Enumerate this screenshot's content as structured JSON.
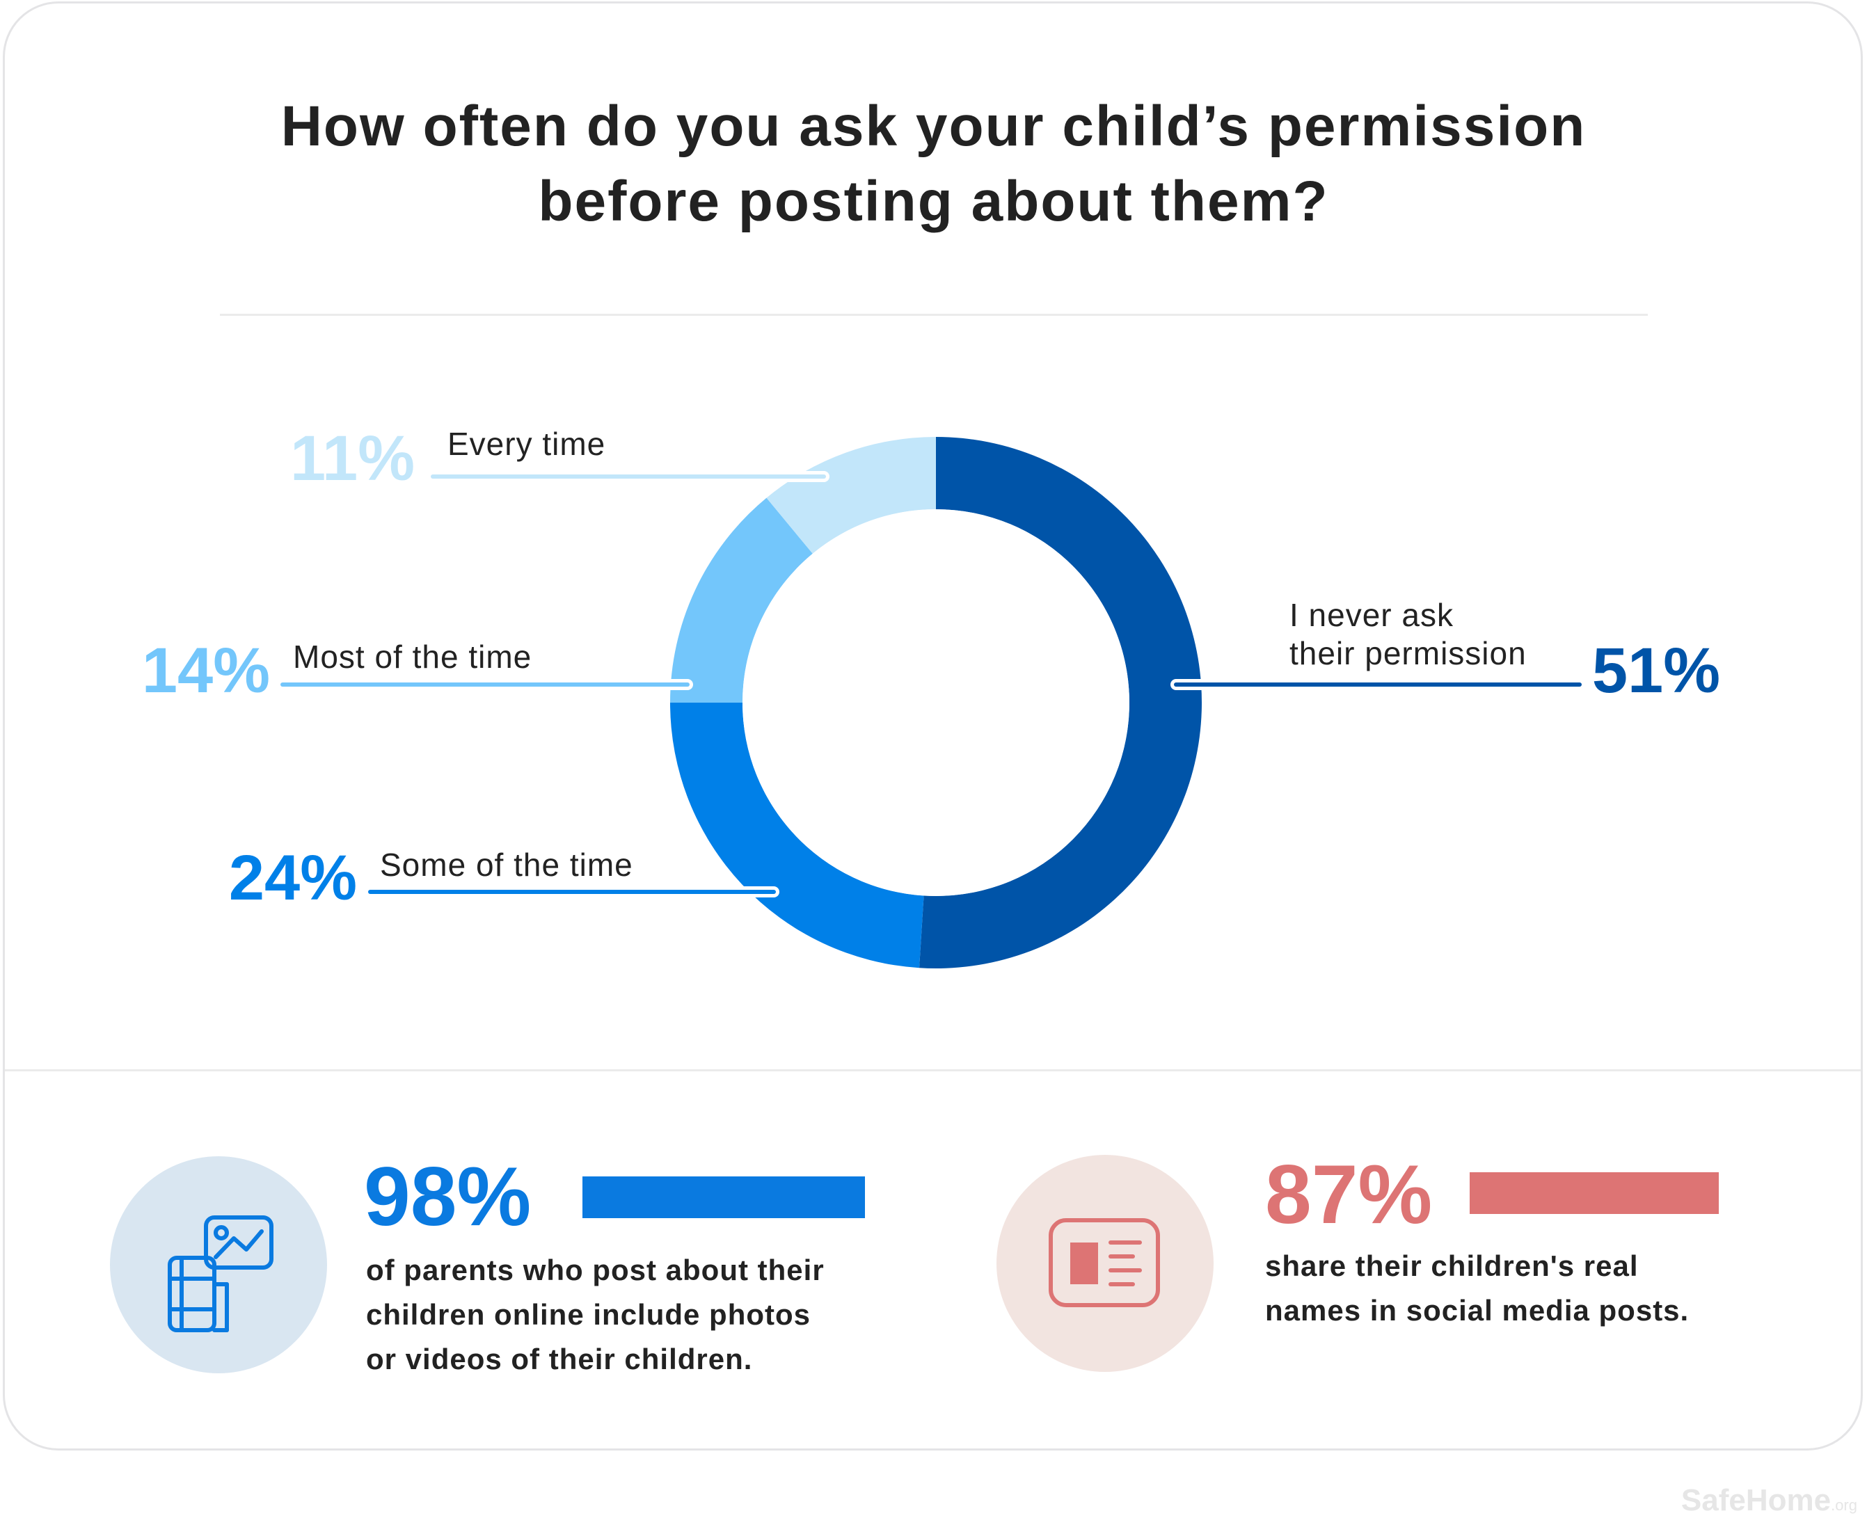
{
  "title": {
    "line1": "How often do you ask your child’s permission",
    "line2": "before posting about them?"
  },
  "chart_data": {
    "type": "donut",
    "title": "How often do you ask your child’s permission before posting about them?",
    "unit": "%",
    "series": [
      {
        "label": "I never ask their permission",
        "label_lines": [
          "I never ask",
          "their permission"
        ],
        "value": 51,
        "display": "51%",
        "color": "#0054a8"
      },
      {
        "label": "Some of the time",
        "label_lines": [
          "Some of the time"
        ],
        "value": 24,
        "display": "24%",
        "color": "#0080e8"
      },
      {
        "label": "Most of the time",
        "label_lines": [
          "Most of the time"
        ],
        "value": 14,
        "display": "14%",
        "color": "#73c6fb"
      },
      {
        "label": "Every time",
        "label_lines": [
          "Every time"
        ],
        "value": 11,
        "display": "11%",
        "color": "#c2e6fa"
      }
    ]
  },
  "stats": [
    {
      "value": "98%",
      "text_lines": [
        "of parents who post about their",
        "children online include photos",
        "or videos of their children."
      ],
      "color": "#0a7ae0",
      "icon": "photo-video-icon",
      "circle_color": "#d9e6f1"
    },
    {
      "value": "87%",
      "text_lines": [
        "share their children's real",
        "names in social media posts."
      ],
      "color": "#dd7474",
      "icon": "id-card-icon",
      "circle_color": "#f2e4e0"
    }
  ],
  "brand": {
    "name": "SafeHome",
    "suffix": ".org"
  }
}
